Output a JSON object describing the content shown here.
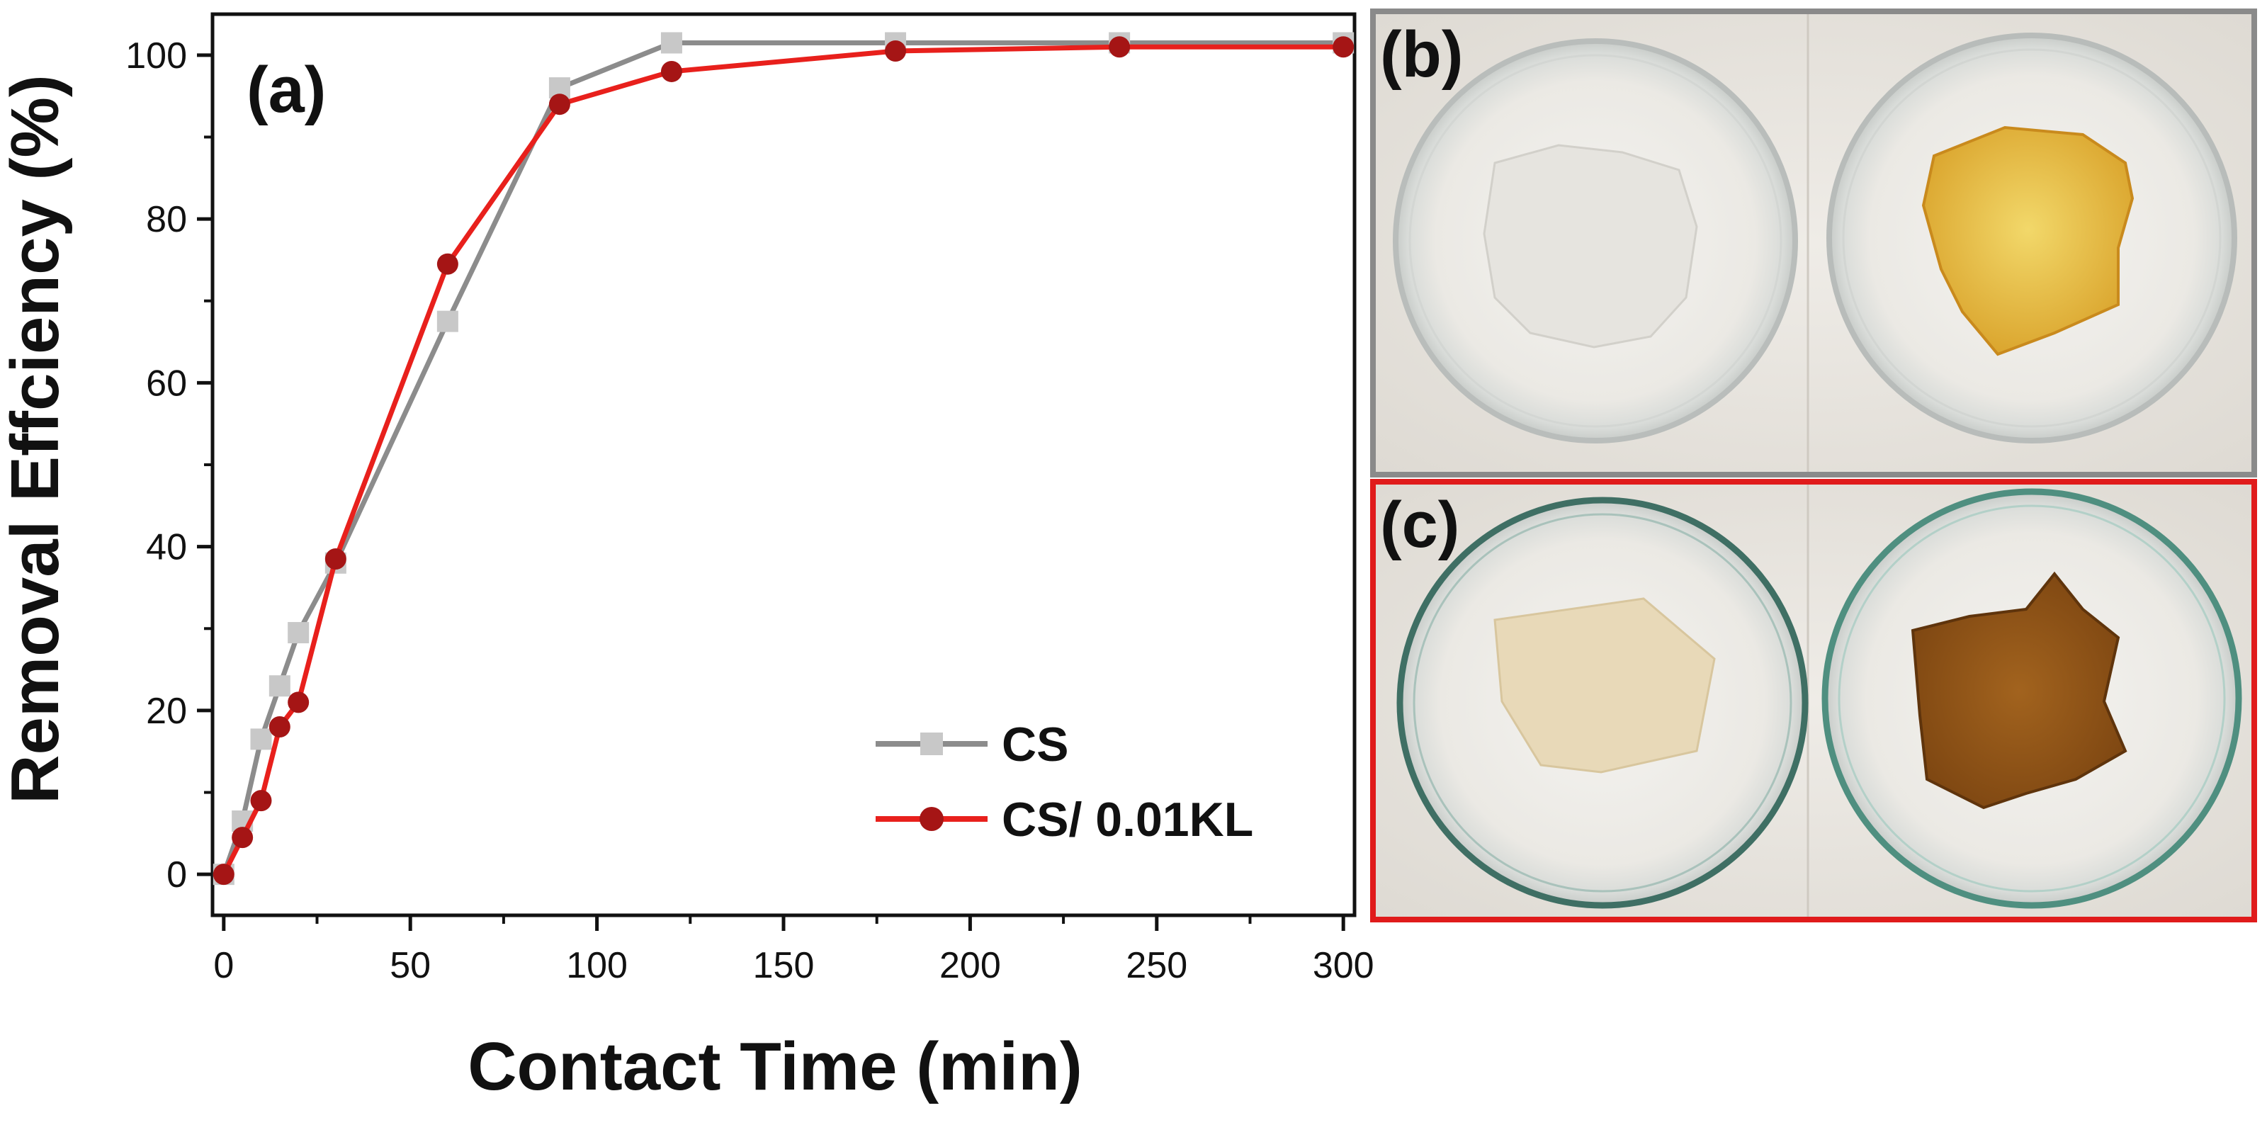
{
  "panels": {
    "a_label": "(a)",
    "b_label": "(b)",
    "c_label": "(c)"
  },
  "chart_data": {
    "type": "line",
    "xlabel": "Contact Time (min)",
    "ylabel": "Removal Effciency (%)",
    "xlim": [
      -3,
      303
    ],
    "ylim": [
      -5,
      105
    ],
    "xticks": [
      0,
      50,
      100,
      150,
      200,
      250,
      300
    ],
    "yticks": [
      0,
      20,
      40,
      60,
      80,
      100
    ],
    "grid": false,
    "legend_position": "bottom-right",
    "series": [
      {
        "name": "CS",
        "color": "#8c8c8c",
        "marker": "square",
        "marker_color": "#c8c8c8",
        "x": [
          0,
          5,
          10,
          15,
          20,
          30,
          60,
          90,
          120,
          180,
          240,
          300
        ],
        "y": [
          0,
          6.5,
          16.5,
          23,
          29.5,
          38,
          67.5,
          96,
          101.5,
          101.5,
          101.5,
          101.5
        ]
      },
      {
        "name": "CS/ 0.01KL",
        "color": "#e8201c",
        "marker": "circle",
        "marker_color": "#a51515",
        "x": [
          0,
          5,
          10,
          15,
          20,
          30,
          60,
          90,
          120,
          180,
          240,
          300
        ],
        "y": [
          0,
          4.5,
          9,
          18,
          21,
          38.5,
          74.5,
          94,
          98,
          100.5,
          101,
          101
        ]
      }
    ]
  },
  "photos": {
    "b": {
      "frame_color": "#8a8a8a",
      "left_sample_color": "#e9e7e2",
      "right_sample_color": "#e7c24a"
    },
    "c": {
      "frame_color": "#e01b1b",
      "left_sample_color": "#e8d9b8",
      "right_sample_color": "#9b5a18"
    }
  }
}
